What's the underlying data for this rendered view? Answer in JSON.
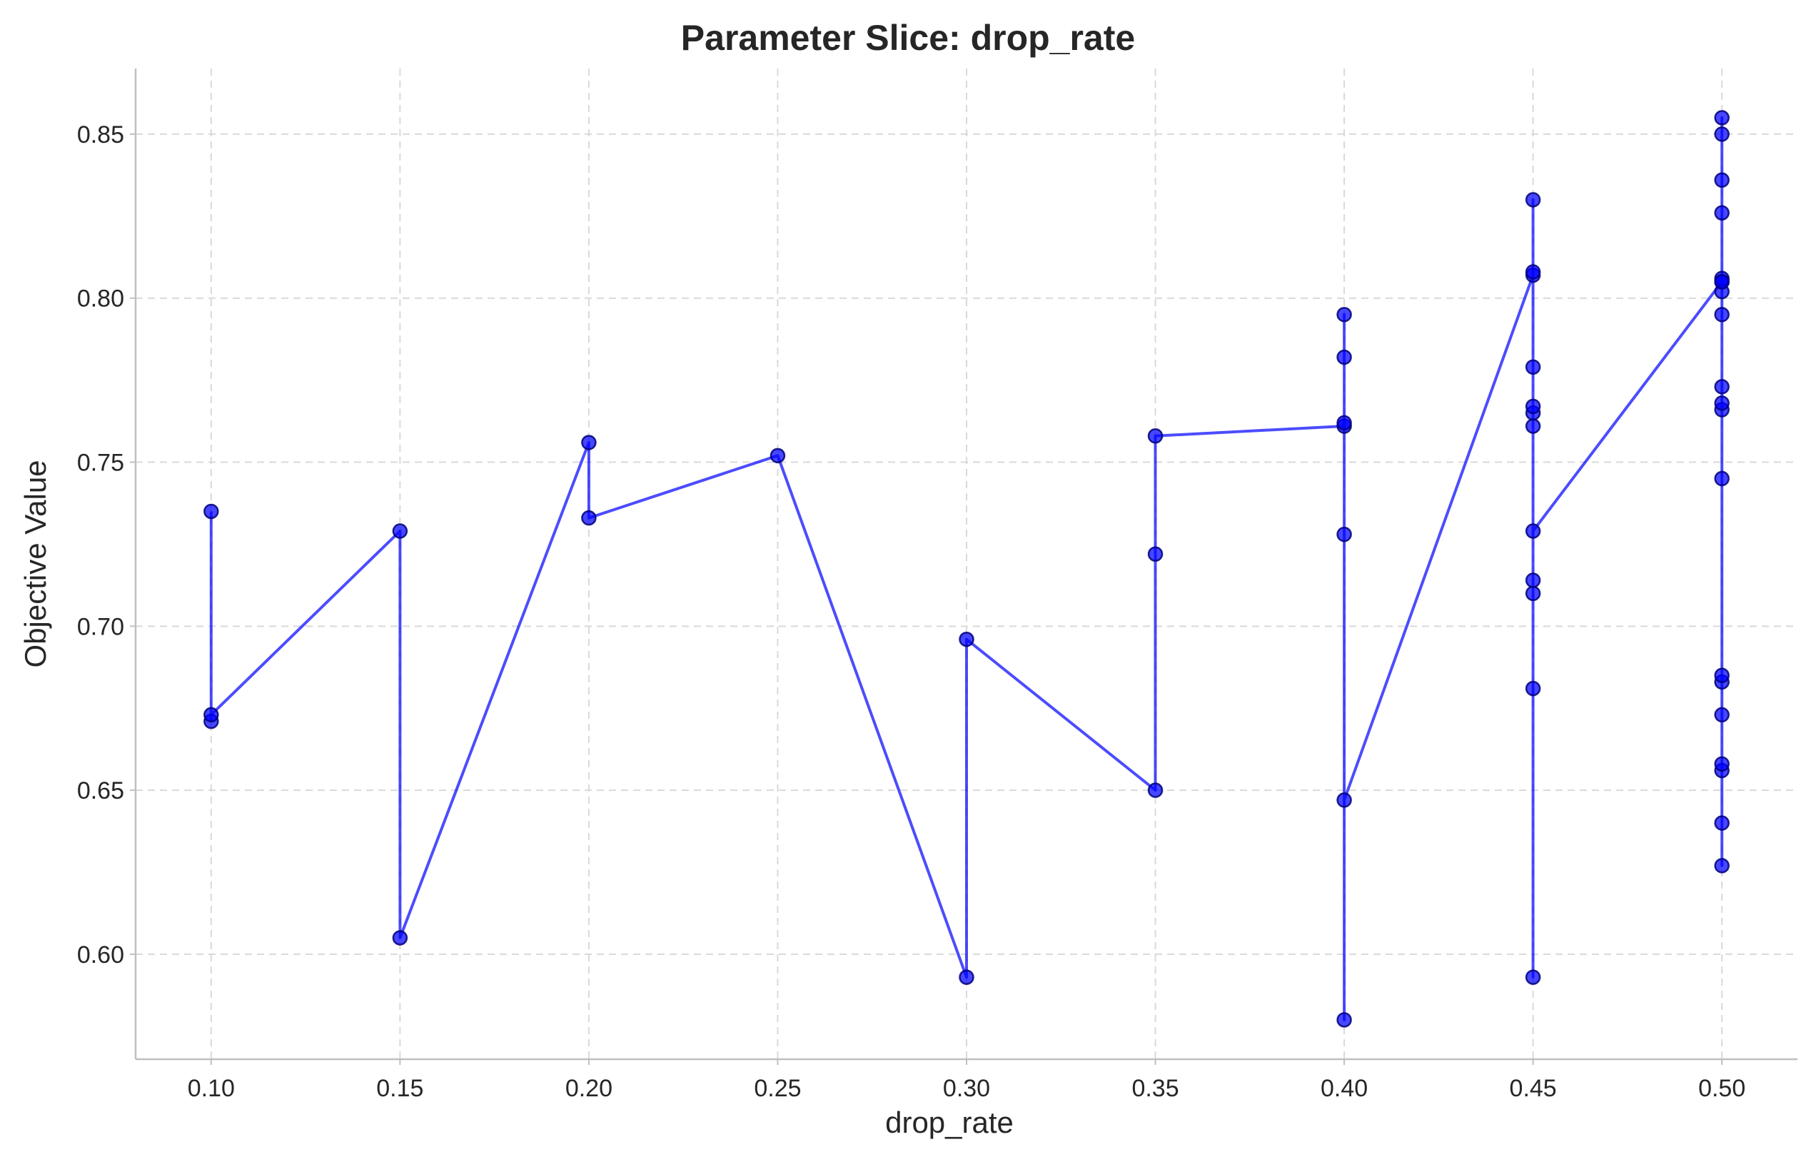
{
  "chart_data": {
    "type": "line",
    "title": "Parameter Slice: drop_rate",
    "xlabel": "drop_rate",
    "ylabel": "Objective Value",
    "xlim": [
      0.08,
      0.52
    ],
    "ylim": [
      0.568,
      0.87
    ],
    "xticks": [
      0.1,
      0.15,
      0.2,
      0.25,
      0.3,
      0.35,
      0.4,
      0.45,
      0.5
    ],
    "xtick_labels": [
      "0.10",
      "0.15",
      "0.20",
      "0.25",
      "0.30",
      "0.35",
      "0.40",
      "0.45",
      "0.50"
    ],
    "yticks": [
      0.6,
      0.65,
      0.7,
      0.75,
      0.8,
      0.85
    ],
    "ytick_labels": [
      "0.60",
      "0.65",
      "0.70",
      "0.75",
      "0.80",
      "0.85"
    ],
    "grid": true,
    "marker": "circle",
    "color": "#0000ff",
    "line_alpha": 0.7,
    "series": [
      {
        "x": [
          0.1,
          0.1,
          0.1,
          0.15,
          0.15,
          0.2,
          0.2,
          0.25,
          0.3,
          0.3,
          0.35,
          0.35,
          0.35,
          0.4,
          0.4,
          0.4,
          0.4,
          0.4,
          0.4,
          0.4,
          0.45,
          0.45,
          0.45,
          0.45,
          0.45,
          0.45,
          0.45,
          0.45,
          0.45,
          0.45,
          0.45,
          0.45,
          0.5,
          0.5,
          0.5,
          0.5,
          0.5,
          0.5,
          0.5,
          0.5,
          0.5,
          0.5,
          0.5,
          0.5,
          0.5,
          0.5,
          0.5,
          0.5,
          0.5,
          0.5,
          0.5,
          0.5
        ],
        "y": [
          0.735,
          0.671,
          0.673,
          0.729,
          0.605,
          0.756,
          0.733,
          0.752,
          0.593,
          0.696,
          0.65,
          0.722,
          0.758,
          0.761,
          0.795,
          0.782,
          0.762,
          0.728,
          0.58,
          0.647,
          0.807,
          0.593,
          0.681,
          0.71,
          0.714,
          0.761,
          0.765,
          0.767,
          0.779,
          0.808,
          0.83,
          0.729,
          0.805,
          0.627,
          0.64,
          0.656,
          0.658,
          0.673,
          0.683,
          0.685,
          0.745,
          0.766,
          0.768,
          0.773,
          0.795,
          0.802,
          0.806,
          0.826,
          0.836,
          0.85,
          0.855,
          0.805
        ]
      }
    ]
  }
}
